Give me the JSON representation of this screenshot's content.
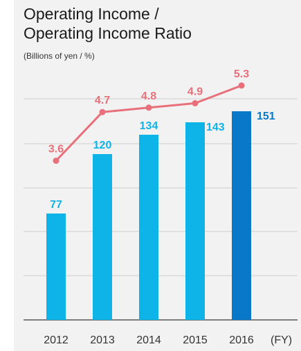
{
  "chart_data": {
    "type": "bar+line",
    "title_lines": [
      "Operating Income /",
      "Operating Income Ratio"
    ],
    "subtitle": "(Billions of yen / %)",
    "categories": [
      "2012",
      "2013",
      "2014",
      "2015",
      "2016"
    ],
    "x_unit": "(FY)",
    "series": [
      {
        "name": "Operating Income",
        "type": "bar",
        "values": [
          77,
          120,
          134,
          143,
          151
        ]
      },
      {
        "name": "Operating Income Ratio",
        "type": "line",
        "values": [
          3.6,
          4.7,
          4.8,
          4.9,
          5.3
        ]
      }
    ],
    "bar_labels": [
      "77",
      "120",
      "134",
      "143",
      "151"
    ],
    "line_labels": [
      "3.6",
      "4.7",
      "4.8",
      "4.9",
      "5.3"
    ],
    "bar_ylim": [
      0,
      160
    ],
    "line_ylim": [
      0,
      6.25
    ],
    "grid": true,
    "colors": {
      "bar": "#0eb4e8",
      "bar_highlight": "#0a78c8",
      "bar_label": "#0eb4e8",
      "bar_label_highlight": "#0a78c8",
      "line": "#e8707a",
      "line_label": "#e8707a"
    }
  }
}
